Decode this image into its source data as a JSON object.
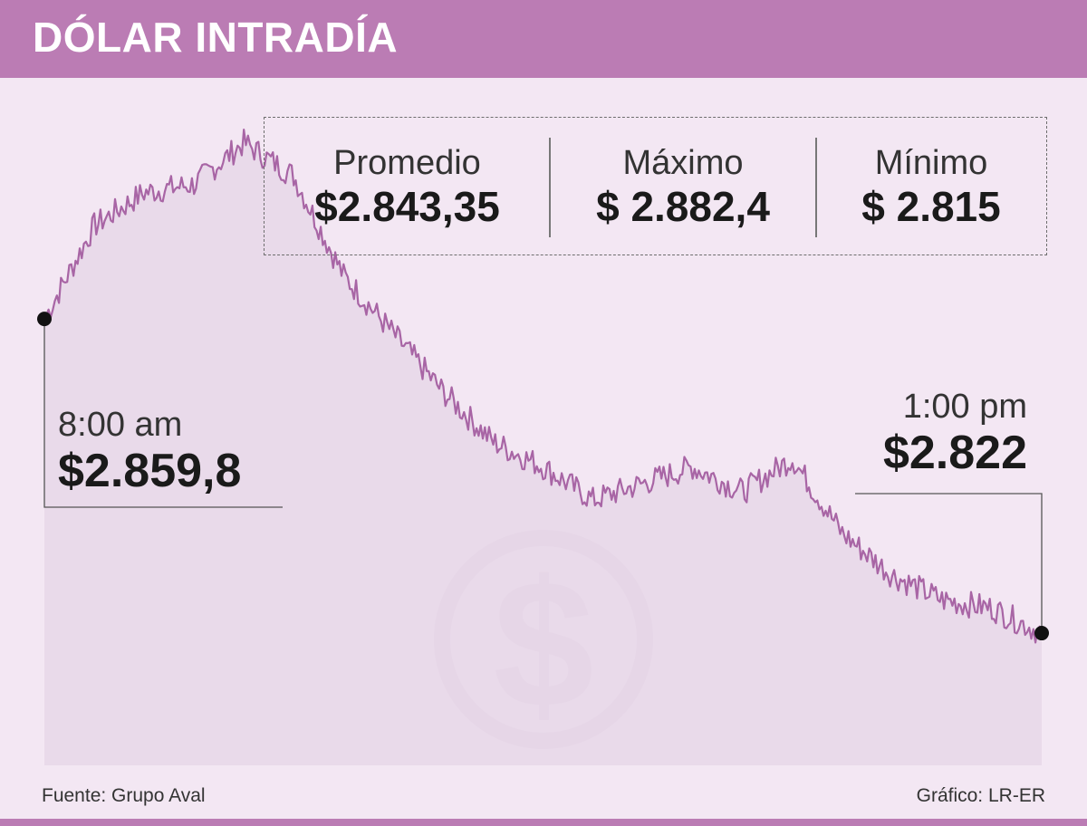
{
  "header": {
    "title": "DÓLAR INTRADÍA"
  },
  "stats": {
    "average": {
      "label": "Promedio",
      "value": "$2.843,35"
    },
    "max": {
      "label": "Máximo",
      "value": "$ 2.882,4"
    },
    "min": {
      "label": "Mínimo",
      "value": "$ 2.815"
    }
  },
  "callouts": {
    "open": {
      "time": "8:00 am",
      "value": "$2.859,8"
    },
    "close": {
      "time": "1:00 pm",
      "value": "$2.822"
    }
  },
  "footer": {
    "source": "Fuente: Grupo Aval",
    "credit": "Gráfico: LR-ER"
  },
  "colors": {
    "header": "#bb7cb4",
    "background": "#f3e7f3",
    "area_fill": "#e6d7e7",
    "line": "#a865a5",
    "watermark": "#dcc4dc"
  },
  "icons": {
    "watermark": "dollar-coin-icon"
  },
  "chart_data": {
    "type": "area",
    "x": [
      "8:00",
      "8:15",
      "8:30",
      "8:45",
      "9:00",
      "9:15",
      "9:30",
      "9:45",
      "10:00",
      "10:15",
      "10:30",
      "10:45",
      "11:00",
      "11:15",
      "11:30",
      "11:45",
      "12:00",
      "12:15",
      "12:30",
      "12:45",
      "13:00"
    ],
    "values": [
      2859.8,
      2871,
      2875,
      2876,
      2881,
      2877,
      2865,
      2858,
      2851,
      2845,
      2842,
      2838,
      2840,
      2842,
      2839,
      2843,
      2834,
      2829,
      2826,
      2825,
      2822
    ],
    "open": 2859.8,
    "close": 2822,
    "max": 2882.4,
    "min": 2815,
    "average": 2843.35,
    "ylim": [
      2811,
      2884
    ]
  }
}
